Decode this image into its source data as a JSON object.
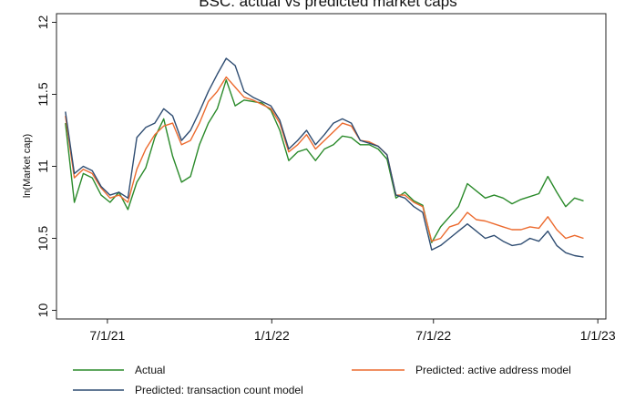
{
  "chart_data": {
    "type": "line",
    "title": "BSC: actual vs predicted market caps",
    "xlabel": "",
    "ylabel": "ln(Market cap)",
    "x_origin": "2021-07-01",
    "x_unit": "days since x_origin",
    "x": [
      -47,
      -37,
      -27,
      -17,
      -7,
      3,
      13,
      23,
      33,
      43,
      53,
      63,
      73,
      83,
      93,
      103,
      113,
      123,
      133,
      143,
      153,
      163,
      173,
      183,
      193,
      203,
      213,
      223,
      233,
      243,
      253,
      263,
      273,
      283,
      293,
      303,
      313,
      323,
      333,
      343,
      353,
      363,
      373,
      383,
      393,
      403,
      413,
      423,
      433,
      443,
      453,
      463,
      473,
      483,
      493,
      503,
      513,
      523,
      533
    ],
    "xticks": [
      {
        "day": 0,
        "label": "7/1/21"
      },
      {
        "day": 184,
        "label": "1/1/22"
      },
      {
        "day": 365,
        "label": "7/1/22"
      },
      {
        "day": 549,
        "label": "1/1/23"
      }
    ],
    "xlim": [
      -57,
      558
    ],
    "yticks": [
      {
        "value": 10,
        "label": "10"
      },
      {
        "value": 10.5,
        "label": "10.5"
      },
      {
        "value": 11,
        "label": "11"
      },
      {
        "value": 11.5,
        "label": "11.5"
      },
      {
        "value": 12,
        "label": "12"
      }
    ],
    "ylim": [
      9.94,
      12.06
    ],
    "grid": false,
    "legend_placement": "bottom",
    "series": [
      {
        "name": "Actual",
        "color": "#2a8a2a",
        "values": [
          11.3,
          10.75,
          10.95,
          10.92,
          10.8,
          10.75,
          10.82,
          10.7,
          10.89,
          10.99,
          11.2,
          11.33,
          11.07,
          10.89,
          10.93,
          11.15,
          11.3,
          11.4,
          11.6,
          11.42,
          11.46,
          11.45,
          11.44,
          11.39,
          11.25,
          11.04,
          11.1,
          11.12,
          11.04,
          11.12,
          11.15,
          11.21,
          11.2,
          11.15,
          11.15,
          11.12,
          11.05,
          10.78,
          10.82,
          10.76,
          10.73,
          10.47,
          10.58,
          10.65,
          10.72,
          10.88,
          10.83,
          10.78,
          10.8,
          10.78,
          10.74,
          10.77,
          10.79,
          10.81,
          10.93,
          10.82,
          10.72,
          10.78,
          10.76
        ]
      },
      {
        "name": "Predicted: active address model",
        "color": "#ec6a2e",
        "values": [
          11.35,
          10.92,
          10.98,
          10.95,
          10.85,
          10.78,
          10.8,
          10.75,
          10.98,
          11.12,
          11.22,
          11.28,
          11.3,
          11.15,
          11.18,
          11.3,
          11.45,
          11.52,
          11.62,
          11.55,
          11.48,
          11.46,
          11.43,
          11.4,
          11.3,
          11.1,
          11.15,
          11.22,
          11.12,
          11.18,
          11.24,
          11.3,
          11.28,
          11.18,
          11.17,
          11.14,
          11.08,
          10.8,
          10.8,
          10.75,
          10.72,
          10.48,
          10.5,
          10.58,
          10.6,
          10.68,
          10.63,
          10.62,
          10.6,
          10.58,
          10.56,
          10.56,
          10.58,
          10.57,
          10.65,
          10.56,
          10.5,
          10.52,
          10.5
        ]
      },
      {
        "name": "Predicted: transaction count model",
        "color": "#2f4d72",
        "values": [
          11.38,
          10.95,
          11.0,
          10.97,
          10.86,
          10.8,
          10.82,
          10.78,
          11.2,
          11.27,
          11.3,
          11.4,
          11.35,
          11.18,
          11.25,
          11.38,
          11.52,
          11.64,
          11.75,
          11.7,
          11.52,
          11.48,
          11.45,
          11.42,
          11.32,
          11.12,
          11.18,
          11.25,
          11.15,
          11.22,
          11.3,
          11.33,
          11.3,
          11.18,
          11.16,
          11.14,
          11.08,
          10.8,
          10.78,
          10.72,
          10.68,
          10.42,
          10.45,
          10.5,
          10.55,
          10.6,
          10.55,
          10.5,
          10.52,
          10.48,
          10.45,
          10.46,
          10.5,
          10.48,
          10.55,
          10.45,
          10.4,
          10.38,
          10.37
        ]
      }
    ]
  }
}
